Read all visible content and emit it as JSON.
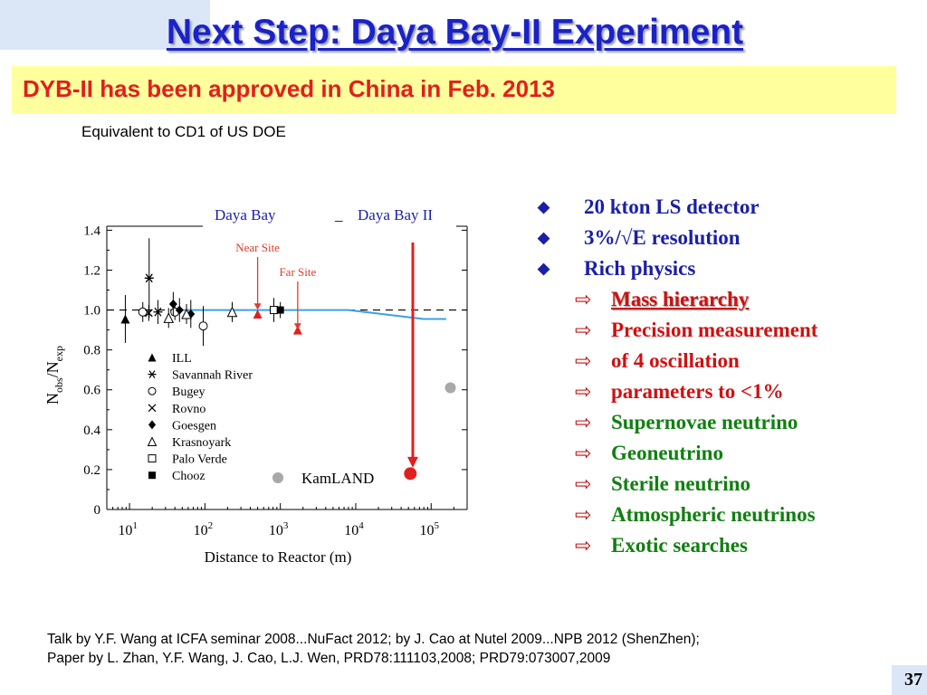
{
  "slide": {
    "title": "Next Step: Daya Bay-II Experiment",
    "banner": "DYB-II has been approved in China in Feb. 2013",
    "subnote": "Equivalent to CD1 of US DOE",
    "page_number": "37"
  },
  "bullets": [
    {
      "level": 1,
      "text": "20 kton LS detector",
      "color": "#1b1fa6"
    },
    {
      "level": 1,
      "text": "3%/√E  resolution",
      "color": "#1b1fa6"
    },
    {
      "level": 1,
      "text": "Rich physics",
      "color": "#1b1fa6"
    },
    {
      "level": 2,
      "text": "Mass hierarchy",
      "color": "#d01010"
    },
    {
      "level": 2,
      "text": "Precision measurement",
      "color": "#d01010"
    },
    {
      "level": 2,
      "text": "of 4 oscillation",
      "color": "#d01010"
    },
    {
      "level": 2,
      "text": "parameters to <1%",
      "color": "#d01010"
    },
    {
      "level": 2,
      "text": "Supernovae neutrino",
      "color": "#108010"
    },
    {
      "level": 2,
      "text": "Geoneutrino",
      "color": "#108010"
    },
    {
      "level": 2,
      "text": "Sterile neutrino",
      "color": "#108010"
    },
    {
      "level": 2,
      "text": "Atmospheric neutrinos",
      "color": "#108010"
    },
    {
      "level": 2,
      "text": "Exotic searches",
      "color": "#108010"
    }
  ],
  "footer": {
    "line1": "Talk by Y.F. Wang at ICFA seminar 2008...NuFact 2012;  by J. Cao at Nutel 2009...NPB 2012 (ShenZhen);",
    "line2": "Paper by L. Zhan, Y.F. Wang, J. Cao, L.J. Wen,  PRD78:111103,2008;  PRD79:073007,2009"
  },
  "chart_data": {
    "type": "scatter",
    "xlabel": "Distance to Reactor (m)",
    "ylabel_main": "N",
    "ylabel_sub1": "obs",
    "ylabel_sep": "/N",
    "ylabel_sub2": "exp",
    "xscale": "log",
    "xlim": [
      5,
      300000
    ],
    "ylim": [
      0.0,
      1.42
    ],
    "yticks": [
      "0",
      "0.2",
      "0.4",
      "0.6",
      "0.8",
      "1.0",
      "1.2",
      "1.4"
    ],
    "xticks": [
      {
        "value": 10,
        "base": "10",
        "exp": "1"
      },
      {
        "value": 100,
        "base": "10",
        "exp": "2"
      },
      {
        "value": 1000,
        "base": "10",
        "exp": "3"
      },
      {
        "value": 10000,
        "base": "10",
        "exp": "4"
      },
      {
        "value": 100000,
        "base": "10",
        "exp": "5"
      }
    ],
    "header_labels": {
      "left": "Daya Bay",
      "sep": "_",
      "right": "Daya Bay II"
    },
    "annotations": [
      {
        "text": "Near Site",
        "x": 500,
        "y": 0.97
      },
      {
        "text": "Far Site",
        "x": 1700,
        "y": 0.87
      }
    ],
    "reference_line": 1.0,
    "legend": [
      {
        "name": "ILL",
        "marker": "triangle-filled"
      },
      {
        "name": "Savannah River",
        "marker": "asterisk"
      },
      {
        "name": "Bugey",
        "marker": "circle-open"
      },
      {
        "name": "Rovno",
        "marker": "cross"
      },
      {
        "name": "Goesgen",
        "marker": "diamond-filled"
      },
      {
        "name": "Krasnoyark",
        "marker": "triangle-open"
      },
      {
        "name": "Palo Verde",
        "marker": "square-open"
      },
      {
        "name": "Chooz",
        "marker": "square-filled"
      },
      {
        "name": "KamLAND",
        "marker": "circle-gray"
      }
    ],
    "points": [
      {
        "series": "ILL",
        "x": 8.8,
        "y": 0.955,
        "err": 0.12,
        "marker": "triangle-filled"
      },
      {
        "series": "Savannah River",
        "x": 18.2,
        "y": 1.16,
        "err": 0.2,
        "marker": "asterisk"
      },
      {
        "series": "Savannah River",
        "x": 23.8,
        "y": 0.99,
        "err": 0.06,
        "marker": "asterisk"
      },
      {
        "series": "Bugey",
        "x": 15,
        "y": 0.99,
        "err": 0.05,
        "marker": "circle-open"
      },
      {
        "series": "Bugey",
        "x": 40,
        "y": 0.99,
        "err": 0.04,
        "marker": "circle-open"
      },
      {
        "series": "Bugey",
        "x": 95,
        "y": 0.92,
        "err": 0.1,
        "marker": "circle-open"
      },
      {
        "series": "Rovno",
        "x": 18,
        "y": 0.985,
        "err": 0.04,
        "marker": "cross"
      },
      {
        "series": "Goesgen",
        "x": 38,
        "y": 1.03,
        "err": 0.06,
        "marker": "diamond-filled"
      },
      {
        "series": "Goesgen",
        "x": 46,
        "y": 1.0,
        "err": 0.06,
        "marker": "diamond-filled"
      },
      {
        "series": "Goesgen",
        "x": 65,
        "y": 0.98,
        "err": 0.07,
        "marker": "diamond-filled"
      },
      {
        "series": "Krasnoyark",
        "x": 33,
        "y": 0.96,
        "err": 0.05,
        "marker": "triangle-open"
      },
      {
        "series": "Krasnoyark",
        "x": 57,
        "y": 0.98,
        "err": 0.05,
        "marker": "triangle-open"
      },
      {
        "series": "Krasnoyark",
        "x": 230,
        "y": 0.99,
        "err": 0.05,
        "marker": "triangle-open"
      },
      {
        "series": "Palo Verde",
        "x": 820,
        "y": 1.0,
        "err": 0.06,
        "marker": "square-open"
      },
      {
        "series": "Chooz",
        "x": 1000,
        "y": 1.0,
        "err": 0.04,
        "marker": "square-filled"
      },
      {
        "series": "KamLAND",
        "x": 180000,
        "y": 0.61,
        "err": 0.0,
        "marker": "circle-gray"
      },
      {
        "series": "Near Site",
        "x": 500,
        "y": 0.98,
        "err": 0.0,
        "marker": "triangle-red"
      },
      {
        "series": "Far Site",
        "x": 1700,
        "y": 0.9,
        "err": 0.0,
        "marker": "triangle-red"
      },
      {
        "series": "Daya Bay II",
        "x": 53000,
        "y": 0.18,
        "err": 0.0,
        "marker": "circle-red"
      }
    ],
    "colors": {
      "curve": "#3ea0e6",
      "arrow": "#e02020",
      "marker_red": "#e02020",
      "kamland": "#a8a8a8"
    }
  }
}
